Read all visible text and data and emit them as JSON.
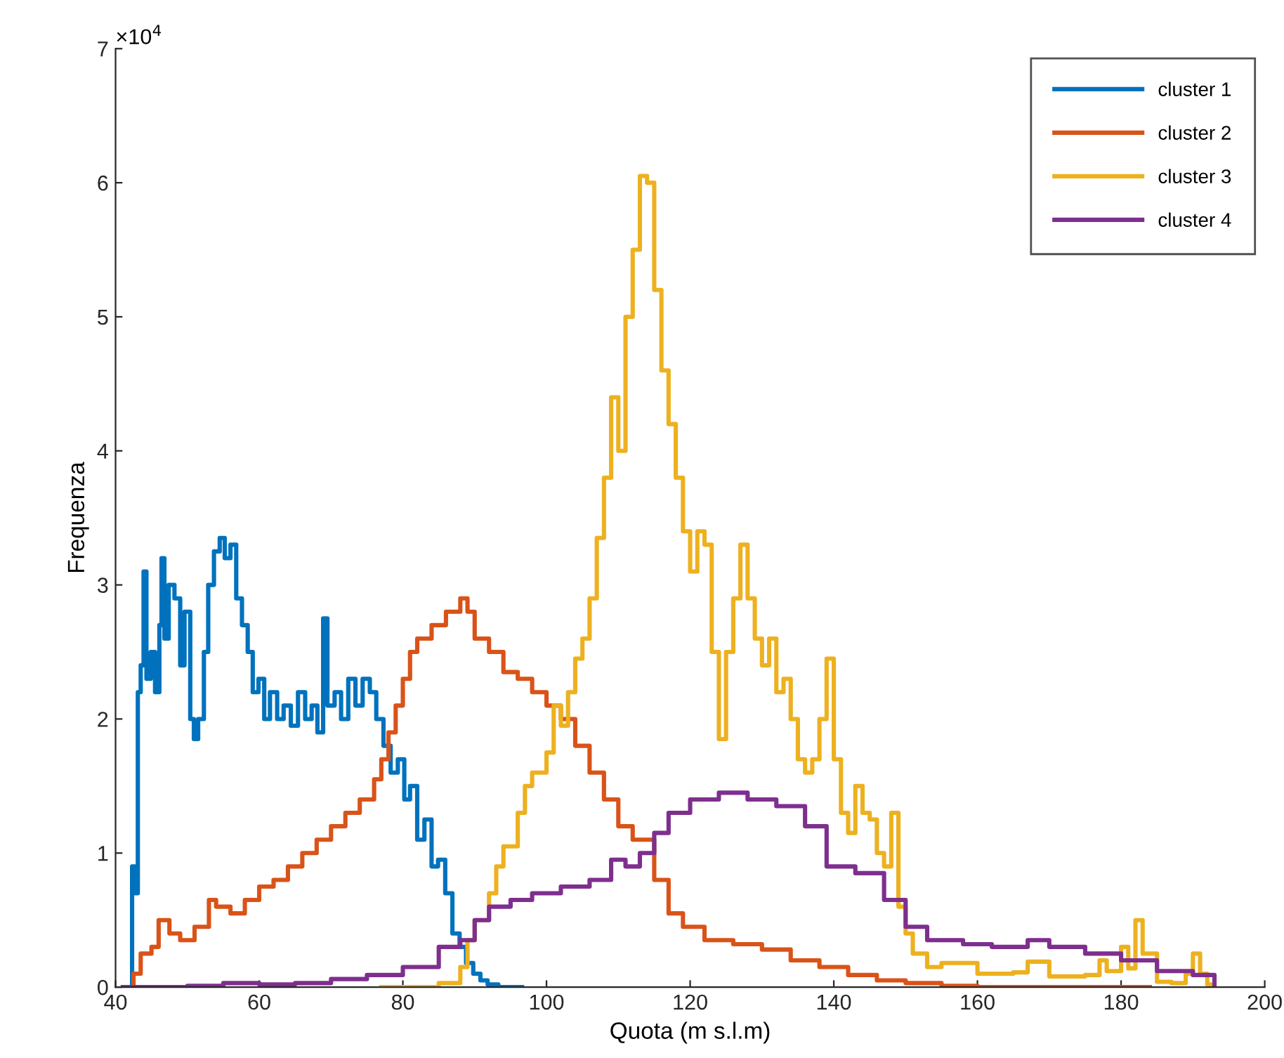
{
  "chart_data": {
    "type": "step",
    "xlabel": "Quota (m s.l.m)",
    "ylabel": "Frequenza",
    "annotations": [
      "×10$^{4}$"
    ],
    "xlim": [
      40,
      200
    ],
    "xticks": [
      40,
      60,
      80,
      100,
      120,
      140,
      160,
      180,
      200
    ],
    "ylim": [
      0,
      7
    ],
    "yticks": [
      0,
      1,
      2,
      3,
      4,
      5,
      6,
      7
    ],
    "grid": false,
    "legend": "top right",
    "line_style": "solid",
    "marker": "none",
    "series": [
      {
        "name": "cluster 1",
        "color": "#0072bd",
        "x": [
          42,
          42.3,
          42.7,
          43.1,
          43.5,
          43.9,
          44.3,
          44.9,
          45.5,
          46.1,
          46.4,
          46.8,
          47.4,
          48.2,
          49,
          49.6,
          50.4,
          50.9,
          51.5,
          52.3,
          52.9,
          53.7,
          54.5,
          55.2,
          56,
          56.8,
          57.6,
          58.4,
          59.1,
          59.9,
          60.7,
          61.5,
          62.5,
          63.4,
          64.4,
          65.4,
          66.4,
          67.3,
          68.1,
          68.9,
          69.5,
          70.5,
          71.4,
          72.4,
          73.4,
          74.4,
          75.4,
          76.3,
          77.3,
          78.3,
          79.3,
          80.2,
          81,
          82,
          83,
          84,
          84.9,
          85.9,
          86.9,
          87.9,
          88.8,
          89.8,
          90.8,
          91.8,
          93.3,
          96.6
        ],
        "values": [
          0,
          0.9,
          0.7,
          2.2,
          2.4,
          3.1,
          2.3,
          2.5,
          2.2,
          2.7,
          3.2,
          2.6,
          3.0,
          2.9,
          2.4,
          2.8,
          2.0,
          1.85,
          2.0,
          2.5,
          3.0,
          3.25,
          3.35,
          3.2,
          3.3,
          2.9,
          2.7,
          2.5,
          2.2,
          2.3,
          2.0,
          2.2,
          2.0,
          2.1,
          1.95,
          2.2,
          2.0,
          2.1,
          1.9,
          2.75,
          2.1,
          2.2,
          2.0,
          2.3,
          2.1,
          2.3,
          2.2,
          2.0,
          1.8,
          1.6,
          1.7,
          1.4,
          1.5,
          1.1,
          1.25,
          0.9,
          0.95,
          0.7,
          0.4,
          0.3,
          0.18,
          0.1,
          0.05,
          0.02,
          0,
          0
        ]
      },
      {
        "name": "cluster 2",
        "color": "#d95319",
        "x": [
          41.5,
          42.5,
          43.5,
          45,
          46,
          47.5,
          49,
          51,
          53,
          54,
          56,
          58,
          60,
          62,
          64,
          66,
          68,
          70,
          72,
          74,
          76,
          77,
          78,
          79,
          80,
          81,
          82,
          84,
          86,
          88,
          89,
          90,
          92,
          94,
          96,
          98,
          100,
          102,
          104,
          106,
          108,
          110,
          112,
          114,
          115,
          117,
          119,
          122,
          126,
          130,
          134,
          138,
          142,
          146,
          150,
          155,
          160,
          184
        ],
        "values": [
          0,
          0.1,
          0.25,
          0.3,
          0.5,
          0.4,
          0.35,
          0.45,
          0.65,
          0.6,
          0.55,
          0.65,
          0.75,
          0.8,
          0.9,
          1.0,
          1.1,
          1.2,
          1.3,
          1.4,
          1.55,
          1.7,
          1.9,
          2.1,
          2.3,
          2.5,
          2.6,
          2.7,
          2.8,
          2.9,
          2.8,
          2.6,
          2.5,
          2.35,
          2.3,
          2.2,
          2.1,
          2.0,
          1.8,
          1.6,
          1.4,
          1.2,
          1.1,
          1.1,
          0.8,
          0.55,
          0.45,
          0.35,
          0.32,
          0.28,
          0.2,
          0.15,
          0.09,
          0.05,
          0.03,
          0.01,
          0,
          0
        ]
      },
      {
        "name": "cluster 3",
        "color": "#edb120",
        "x": [
          77,
          85,
          88,
          89,
          90,
          92,
          93,
          94,
          96,
          97,
          98,
          100,
          101,
          102,
          103,
          104,
          105,
          106,
          107,
          108,
          109,
          110,
          111,
          112,
          113,
          114,
          115,
          116,
          117,
          118,
          119,
          120,
          121,
          122,
          123,
          124,
          125,
          126,
          127,
          128,
          129,
          130,
          131,
          132,
          133,
          134,
          135,
          136,
          137,
          138,
          139,
          140,
          141,
          142,
          143,
          144,
          145,
          146,
          147,
          148,
          149,
          150,
          151,
          153,
          155,
          160,
          165,
          167,
          170,
          175,
          177,
          178,
          180,
          181,
          182,
          183,
          185,
          187,
          189,
          190,
          191,
          192,
          193
        ],
        "values": [
          0,
          0.03,
          0.15,
          0.35,
          0.5,
          0.7,
          0.9,
          1.05,
          1.3,
          1.5,
          1.6,
          1.75,
          2.1,
          1.95,
          2.2,
          2.45,
          2.6,
          2.9,
          3.35,
          3.8,
          4.4,
          4.0,
          5.0,
          5.5,
          6.05,
          6.0,
          5.2,
          4.6,
          4.2,
          3.8,
          3.4,
          3.1,
          3.4,
          3.3,
          2.5,
          1.85,
          2.5,
          2.9,
          3.3,
          2.9,
          2.6,
          2.4,
          2.6,
          2.2,
          2.3,
          2.0,
          1.7,
          1.6,
          1.7,
          2.0,
          2.45,
          1.7,
          1.3,
          1.15,
          1.5,
          1.3,
          1.25,
          1.0,
          0.9,
          1.3,
          0.6,
          0.4,
          0.25,
          0.15,
          0.18,
          0.1,
          0.11,
          0.19,
          0.08,
          0.09,
          0.2,
          0.12,
          0.3,
          0.14,
          0.5,
          0.25,
          0.04,
          0.03,
          0.1,
          0.25,
          0.1,
          0.02,
          0
        ]
      },
      {
        "name": "cluster 4",
        "color": "#7e2f8e",
        "x": [
          41,
          50,
          55,
          60,
          65,
          70,
          75,
          80,
          85,
          88,
          90,
          92,
          95,
          98,
          102,
          106,
          109,
          111,
          113,
          115,
          117,
          120,
          124,
          128,
          132,
          136,
          139,
          143,
          147,
          150,
          153,
          158,
          162,
          167,
          170,
          175,
          180,
          185,
          190,
          193
        ],
        "values": [
          0,
          0.01,
          0.03,
          0.02,
          0.03,
          0.06,
          0.09,
          0.15,
          0.3,
          0.35,
          0.5,
          0.6,
          0.65,
          0.7,
          0.75,
          0.8,
          0.95,
          0.9,
          1.0,
          1.15,
          1.3,
          1.4,
          1.45,
          1.4,
          1.35,
          1.2,
          0.9,
          0.85,
          0.65,
          0.45,
          0.35,
          0.32,
          0.3,
          0.35,
          0.3,
          0.25,
          0.2,
          0.12,
          0.09,
          0
        ]
      }
    ]
  }
}
